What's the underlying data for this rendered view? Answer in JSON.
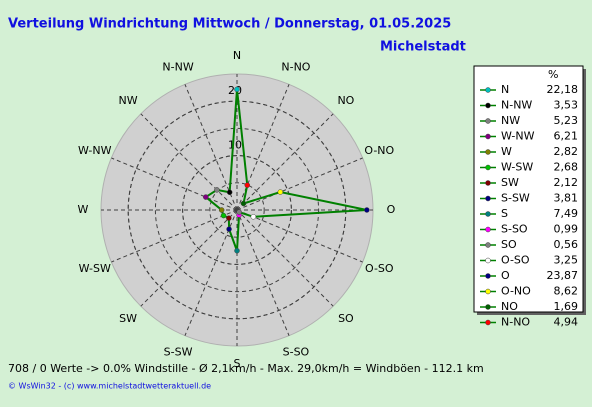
{
  "chart_data": {
    "type": "radar",
    "title": "Verteilung Windrichtung  Mittwoch / Donnerstag, 01.05.2025",
    "subtitle": "Michelstadt",
    "legend_header": "%",
    "categories": [
      "N",
      "N-NW",
      "NW",
      "W-NW",
      "W",
      "W-SW",
      "SW",
      "S-SW",
      "S",
      "S-SO",
      "SO",
      "O-SO",
      "O",
      "O-NO",
      "NO",
      "N-NO"
    ],
    "series": [
      {
        "color": "#008000",
        "values": [
          22.18,
          3.53,
          5.23,
          6.21,
          2.82,
          2.68,
          2.12,
          3.81,
          7.49,
          0.99,
          0.56,
          3.25,
          23.87,
          8.62,
          1.69,
          4.94
        ],
        "value_labels": [
          "22,18",
          "3,53",
          "5,23",
          "6,21",
          "2,82",
          "2,68",
          "2,12",
          "3,81",
          "7,49",
          "0,99",
          "0,56",
          "3,25",
          "23,87",
          "8,62",
          "1,69",
          "4,94"
        ],
        "marker_colors": [
          "#00c0c0",
          "#000000",
          "#808080",
          "#800080",
          "#808000",
          "#00c000",
          "#800000",
          "#000080",
          "#008080",
          "#ff00ff",
          "#808080",
          "#ffffff",
          "#000080",
          "#ffff00",
          "#006000",
          "#ff0000"
        ]
      }
    ],
    "rlim": [
      0,
      25
    ],
    "rticks": [
      10,
      20
    ],
    "footer": "708 / 0 Werte  -> 0.0% Windstille   -   Ø 2,1km/h  -  Max. 29,0km/h = Windböen   -   112.1 km",
    "credit": "© WsWin32  -  (c) www.michelstadtwetteraktuell.de"
  }
}
